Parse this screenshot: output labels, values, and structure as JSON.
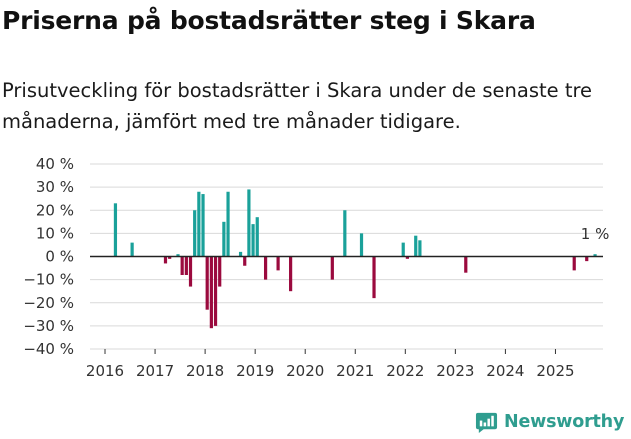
{
  "header": {
    "title": "Priserna på bostadsrätter steg i Skara",
    "subtitle": "Prisutveckling för bostadsrätter i Skara under de senaste tre månaderna, jämfört med tre månader tidigare."
  },
  "brand": {
    "name": "Newsworthy"
  },
  "colors": {
    "positive": "#1aa19a",
    "negative": "#9b0a3e",
    "zero_line": "#222222",
    "grid": "#d9d9d9"
  },
  "chart_data": {
    "type": "bar",
    "ylabel": "",
    "xlabel": "",
    "ylim": [
      -40,
      40
    ],
    "y_ticks": [
      {
        "value": 40,
        "label": "40 %"
      },
      {
        "value": 30,
        "label": "30 %"
      },
      {
        "value": 20,
        "label": "20 %"
      },
      {
        "value": 10,
        "label": "10 %"
      },
      {
        "value": 0,
        "label": "0 %"
      },
      {
        "value": -10,
        "label": "−10 %"
      },
      {
        "value": -20,
        "label": "−20 %"
      },
      {
        "value": -30,
        "label": "−30 %"
      },
      {
        "value": -40,
        "label": "−40 %"
      }
    ],
    "x_ticks": [
      {
        "value": 2016,
        "label": "2016"
      },
      {
        "value": 2017,
        "label": "2017"
      },
      {
        "value": 2018,
        "label": "2018"
      },
      {
        "value": 2019,
        "label": "2019"
      },
      {
        "value": 2020,
        "label": "2020"
      },
      {
        "value": 2021,
        "label": "2021"
      },
      {
        "value": 2022,
        "label": "2022"
      },
      {
        "value": 2023,
        "label": "2023"
      },
      {
        "value": 2024,
        "label": "2024"
      },
      {
        "value": 2025,
        "label": "2025"
      }
    ],
    "x_range": [
      2015.7,
      2025.95
    ],
    "grid": true,
    "values": [
      {
        "date": "2016-03",
        "value": 23
      },
      {
        "date": "2016-07",
        "value": 6
      },
      {
        "date": "2017-03",
        "value": -3
      },
      {
        "date": "2017-04",
        "value": -1
      },
      {
        "date": "2017-06",
        "value": 1
      },
      {
        "date": "2017-07",
        "value": -8
      },
      {
        "date": "2017-08",
        "value": -8
      },
      {
        "date": "2017-09",
        "value": -13
      },
      {
        "date": "2017-10",
        "value": 20
      },
      {
        "date": "2017-11",
        "value": 28
      },
      {
        "date": "2017-12",
        "value": 27
      },
      {
        "date": "2018-01",
        "value": -23
      },
      {
        "date": "2018-02",
        "value": -31
      },
      {
        "date": "2018-03",
        "value": -30
      },
      {
        "date": "2018-04",
        "value": -13
      },
      {
        "date": "2018-05",
        "value": 15
      },
      {
        "date": "2018-06",
        "value": 28
      },
      {
        "date": "2018-09",
        "value": 2
      },
      {
        "date": "2018-10",
        "value": -4
      },
      {
        "date": "2018-11",
        "value": 29
      },
      {
        "date": "2018-12",
        "value": 14
      },
      {
        "date": "2019-01",
        "value": 17
      },
      {
        "date": "2019-03",
        "value": -10
      },
      {
        "date": "2019-06",
        "value": -6
      },
      {
        "date": "2019-09",
        "value": -15
      },
      {
        "date": "2020-07",
        "value": -10
      },
      {
        "date": "2020-10",
        "value": 20
      },
      {
        "date": "2021-02",
        "value": 10
      },
      {
        "date": "2021-05",
        "value": -18
      },
      {
        "date": "2021-12",
        "value": 6
      },
      {
        "date": "2022-01",
        "value": -1
      },
      {
        "date": "2022-03",
        "value": 9
      },
      {
        "date": "2022-04",
        "value": 7
      },
      {
        "date": "2023-03",
        "value": -7
      },
      {
        "date": "2025-05",
        "value": -6
      },
      {
        "date": "2025-08",
        "value": -2
      },
      {
        "date": "2025-10",
        "value": 1
      }
    ],
    "annotations": [
      {
        "date": "2025-10",
        "value": 1,
        "text": "1 %"
      }
    ]
  }
}
